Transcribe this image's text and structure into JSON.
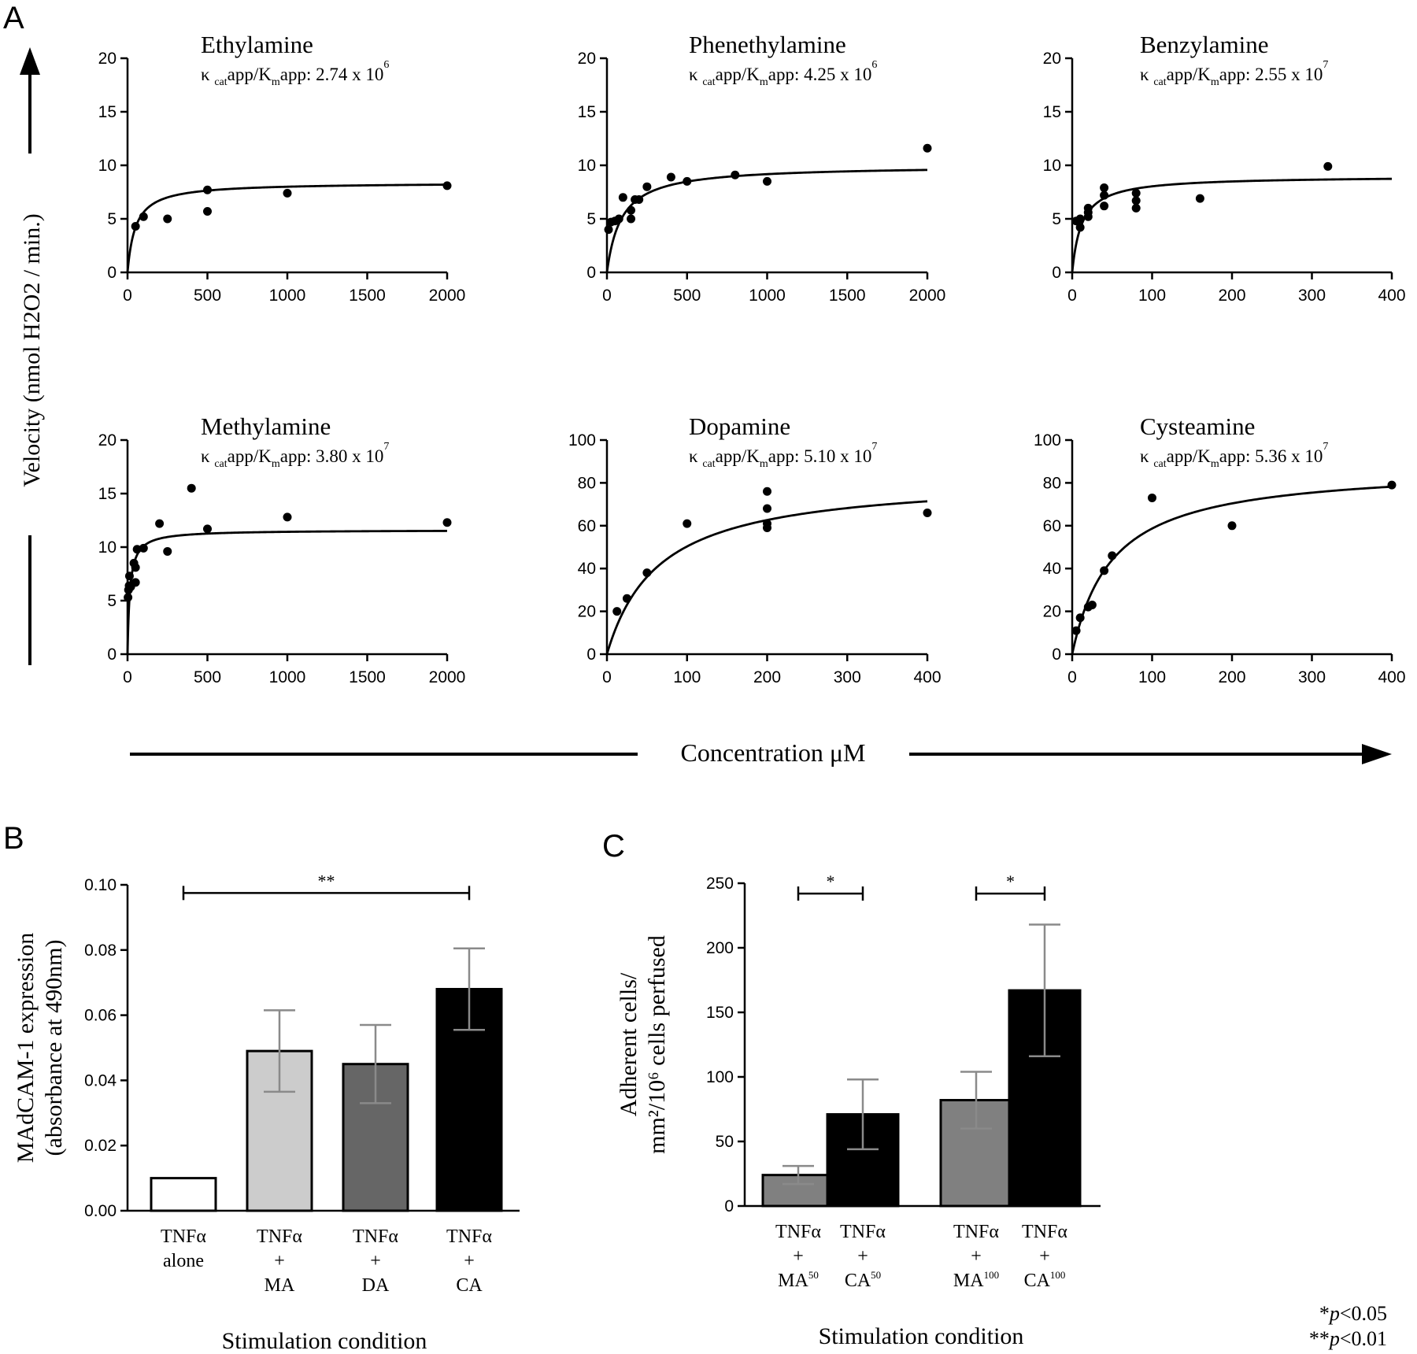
{
  "panel_labels": [
    "A",
    "B",
    "C"
  ],
  "panel_a": {
    "y_axis_label": "Velocity (nmol H2O2 / min.)",
    "x_axis_label": "Concentration μM"
  },
  "kinetic_prefix_k": "κ",
  "kinetic_sub_cat": "cat",
  "kinetic_mid_1": "app/K",
  "kinetic_sub_m": "m",
  "kinetic_mid_2": "app: ",
  "chart_data": [
    {
      "type": "scatter",
      "id": "ethylamine",
      "title": "Ethylamine",
      "ratio_mantissa": "2.74 x 10",
      "ratio_exp": "6",
      "xlim": [
        0,
        2000
      ],
      "ylim": [
        0,
        20
      ],
      "xticks": [
        0,
        500,
        1000,
        1500,
        2000
      ],
      "yticks": [
        0,
        5,
        10,
        15,
        20
      ],
      "fit": {
        "vmax": 8.4,
        "km": 50
      },
      "points": [
        [
          50,
          4.3
        ],
        [
          100,
          5.2
        ],
        [
          250,
          5.0
        ],
        [
          500,
          7.7
        ],
        [
          500,
          5.7
        ],
        [
          1000,
          7.4
        ],
        [
          2000,
          8.1
        ]
      ]
    },
    {
      "type": "scatter",
      "id": "phenethylamine",
      "title": "Phenethylamine",
      "ratio_mantissa": "4.25 x 10",
      "ratio_exp": "6",
      "xlim": [
        0,
        2000
      ],
      "ylim": [
        0,
        20
      ],
      "xticks": [
        0,
        500,
        1000,
        1500,
        2000
      ],
      "yticks": [
        0,
        5,
        10,
        15,
        20
      ],
      "fit": {
        "vmax": 10.0,
        "km": 90
      },
      "points": [
        [
          10,
          4.0
        ],
        [
          25,
          4.7
        ],
        [
          50,
          4.8
        ],
        [
          75,
          5.0
        ],
        [
          100,
          7.0
        ],
        [
          150,
          5.0
        ],
        [
          150,
          5.8
        ],
        [
          175,
          6.8
        ],
        [
          200,
          6.8
        ],
        [
          250,
          8.0
        ],
        [
          400,
          8.9
        ],
        [
          500,
          8.5
        ],
        [
          800,
          9.1
        ],
        [
          1000,
          8.5
        ],
        [
          2000,
          11.6
        ]
      ]
    },
    {
      "type": "scatter",
      "id": "benzylamine",
      "title": "Benzylamine",
      "ratio_mantissa": "2.55 x 10",
      "ratio_exp": "7",
      "xlim": [
        0,
        400
      ],
      "ylim": [
        0,
        20
      ],
      "xticks": [
        0,
        100,
        200,
        300,
        400
      ],
      "yticks": [
        0,
        5,
        10,
        15,
        20
      ],
      "fit": {
        "vmax": 9.0,
        "km": 12
      },
      "points": [
        [
          5,
          4.8
        ],
        [
          10,
          5.0
        ],
        [
          10,
          4.2
        ],
        [
          20,
          5.6
        ],
        [
          20,
          5.2
        ],
        [
          20,
          6.0
        ],
        [
          40,
          6.2
        ],
        [
          40,
          7.2
        ],
        [
          40,
          7.9
        ],
        [
          80,
          6.0
        ],
        [
          80,
          6.7
        ],
        [
          80,
          7.4
        ],
        [
          160,
          6.9
        ],
        [
          320,
          9.9
        ]
      ]
    },
    {
      "type": "scatter",
      "id": "methylamine",
      "title": "Methylamine",
      "ratio_mantissa": "3.80 x 10",
      "ratio_exp": "7",
      "xlim": [
        0,
        2000
      ],
      "ylim": [
        0,
        20
      ],
      "xticks": [
        0,
        500,
        1000,
        1500,
        2000
      ],
      "yticks": [
        0,
        5,
        10,
        15,
        20
      ],
      "fit": {
        "vmax": 11.6,
        "km": 15
      },
      "points": [
        [
          3,
          5.3
        ],
        [
          6,
          6.0
        ],
        [
          10,
          6.4
        ],
        [
          12,
          7.3
        ],
        [
          20,
          6.3
        ],
        [
          40,
          8.5
        ],
        [
          50,
          6.7
        ],
        [
          50,
          8.1
        ],
        [
          60,
          9.8
        ],
        [
          100,
          9.9
        ],
        [
          200,
          12.2
        ],
        [
          250,
          9.6
        ],
        [
          400,
          15.5
        ],
        [
          500,
          11.7
        ],
        [
          1000,
          12.8
        ],
        [
          2000,
          12.3
        ]
      ]
    },
    {
      "type": "scatter",
      "id": "dopamine",
      "title": "Dopamine",
      "ratio_mantissa": "5.10 x 10",
      "ratio_exp": "7",
      "xlim": [
        0,
        400
      ],
      "ylim": [
        0,
        100
      ],
      "xticks": [
        0,
        100,
        200,
        300,
        400
      ],
      "yticks": [
        0,
        20,
        40,
        60,
        80,
        100
      ],
      "fit": {
        "vmax": 83,
        "km": 65
      },
      "points": [
        [
          12.5,
          20
        ],
        [
          25,
          26
        ],
        [
          50,
          38
        ],
        [
          100,
          61
        ],
        [
          200,
          76
        ],
        [
          200,
          68
        ],
        [
          200,
          61
        ],
        [
          200,
          59
        ],
        [
          400,
          66
        ]
      ]
    },
    {
      "type": "scatter",
      "id": "cysteamine",
      "title": "Cysteamine",
      "ratio_mantissa": "5.36 x 10",
      "ratio_exp": "7",
      "xlim": [
        0,
        400
      ],
      "ylim": [
        0,
        100
      ],
      "xticks": [
        0,
        100,
        200,
        300,
        400
      ],
      "yticks": [
        0,
        20,
        40,
        60,
        80,
        100
      ],
      "fit": {
        "vmax": 88,
        "km": 50
      },
      "points": [
        [
          5,
          11
        ],
        [
          10,
          17
        ],
        [
          20,
          22
        ],
        [
          25,
          23
        ],
        [
          40,
          39
        ],
        [
          50,
          46
        ],
        [
          100,
          73
        ],
        [
          200,
          60
        ],
        [
          400,
          79
        ]
      ]
    },
    {
      "type": "bar",
      "id": "panel-b",
      "ylabel_line1": "MAdCAM-1 expression",
      "ylabel_line2": "(absorbance at 490nm)",
      "xlabel": "Stimulation condition",
      "ylim": [
        0,
        0.1
      ],
      "yticks": [
        "0.00",
        "0.02",
        "0.04",
        "0.06",
        "0.08",
        "0.10"
      ],
      "bars": [
        {
          "label": [
            "TNFα",
            "alone"
          ],
          "value": 0.01,
          "err": 0,
          "color": "#ffffff"
        },
        {
          "label": [
            "TNFα",
            "+",
            "MA"
          ],
          "value": 0.049,
          "err": 0.0125,
          "color": "#cccccc"
        },
        {
          "label": [
            "TNFα",
            "+",
            "DA"
          ],
          "value": 0.045,
          "err": 0.012,
          "color": "#666666"
        },
        {
          "label": [
            "TNFα",
            "+",
            "CA"
          ],
          "value": 0.068,
          "err": 0.0125,
          "color": "#000000"
        }
      ],
      "significance": [
        {
          "from": 0,
          "to": 3,
          "label": "**",
          "y": 0.0975
        }
      ]
    },
    {
      "type": "bar",
      "id": "panel-c",
      "ylabel_line1": "Adherent cells/",
      "ylabel_line2": "mm²/10⁶ cells perfused",
      "xlabel": "Stimulation condition",
      "ylim": [
        0,
        250
      ],
      "yticks": [
        "0",
        "50",
        "100",
        "150",
        "200",
        "250"
      ],
      "bars": [
        {
          "label": [
            "TNFα",
            "+",
            "MA"
          ],
          "sup": "50",
          "value": 24,
          "err": 7,
          "color": "#808080"
        },
        {
          "label": [
            "TNFα",
            "+",
            "CA"
          ],
          "sup": "50",
          "value": 71,
          "err": 27,
          "color": "#000000"
        },
        {
          "label": [
            "TNFα",
            "+",
            "MA"
          ],
          "sup": "100",
          "value": 82,
          "err": 22,
          "color": "#808080"
        },
        {
          "label": [
            "TNFα",
            "+",
            "CA"
          ],
          "sup": "100",
          "value": 167,
          "err": 51,
          "color": "#000000"
        }
      ],
      "significance": [
        {
          "from": 0,
          "to": 1,
          "label": "*",
          "y": 242
        },
        {
          "from": 2,
          "to": 3,
          "label": "*",
          "y": 242
        }
      ]
    }
  ],
  "footnotes": {
    "p05_star": "*",
    "p05_p": "p",
    "p05_rest": "<0.05",
    "p01_star": "**",
    "p01_p": "p",
    "p01_rest": "<0.01"
  }
}
